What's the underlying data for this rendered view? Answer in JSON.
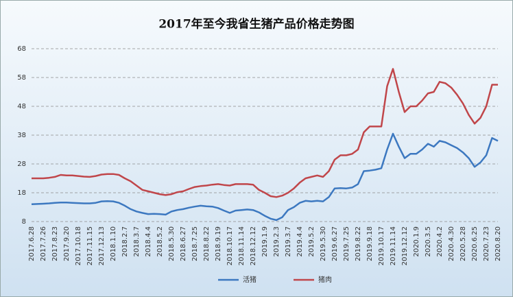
{
  "chart_data": {
    "type": "line",
    "title": "2017年至今我省生猪产品价格走势图",
    "categories": [
      "2017.6.28",
      null,
      "2017.7.26",
      null,
      "2017.8.23",
      null,
      "2017.9.20",
      null,
      "2017.10.18",
      null,
      "2017.11.15",
      null,
      "2017.12.13",
      null,
      "2018.1.10",
      null,
      "2018.2.7",
      null,
      "2018.3.7",
      null,
      "2018.4.4",
      null,
      "2018.5.2",
      null,
      "2018.5.30",
      null,
      "2018.6.27",
      null,
      "2018.7.25",
      null,
      "2018.8.22",
      null,
      "2018.9.19",
      null,
      "2018.10.17",
      null,
      "2018.11.14",
      null,
      "2018.12.12",
      null,
      "2019.1.9",
      null,
      "2019.2.3",
      null,
      "2019.3.7",
      null,
      "2019.4.4",
      null,
      "2019.5.2",
      null,
      "2019.5.30",
      null,
      "2019.6.27",
      null,
      "2019.7.25",
      null,
      "2019.8.22",
      null,
      "2019.9.18",
      null,
      "2019.10.17",
      null,
      "2019.11.14",
      null,
      "2019.12.12",
      null,
      "2020.1.9",
      null,
      "2020.3.5",
      null,
      "2020.4.2",
      null,
      "2020.4.30",
      null,
      "2020.5.28",
      null,
      "2020.6.25",
      null,
      "2020.7.23",
      null,
      "2020.8.20"
    ],
    "series": [
      {
        "name": "活猪",
        "color": "#3c78c0",
        "values": [
          14.0,
          14.1,
          14.2,
          14.3,
          14.5,
          14.6,
          14.6,
          14.5,
          14.4,
          14.3,
          14.3,
          14.5,
          15.0,
          15.1,
          15.0,
          14.5,
          13.5,
          12.3,
          11.5,
          11.0,
          10.6,
          10.7,
          10.6,
          10.4,
          11.5,
          12.0,
          12.3,
          12.8,
          13.2,
          13.5,
          13.3,
          13.2,
          12.7,
          11.8,
          11.0,
          11.8,
          12.0,
          12.2,
          12.0,
          11.2,
          10.0,
          9.0,
          8.5,
          9.5,
          12.0,
          13.0,
          14.5,
          15.2,
          15.0,
          15.2,
          15.0,
          16.5,
          19.5,
          19.6,
          19.5,
          19.8,
          21.0,
          25.5,
          25.7,
          26.0,
          26.5,
          33.0,
          38.5,
          34.0,
          30.0,
          31.5,
          31.5,
          33.0,
          35.0,
          34.0,
          36.0,
          35.5,
          34.5,
          33.5,
          32.0,
          30.0,
          27.0,
          28.5,
          31.0,
          37.0,
          36.0
        ]
      },
      {
        "name": "猪肉",
        "color": "#c0464a",
        "values": [
          23.0,
          23.0,
          23.0,
          23.2,
          23.5,
          24.2,
          24.0,
          24.0,
          23.8,
          23.6,
          23.5,
          23.8,
          24.3,
          24.5,
          24.5,
          24.2,
          23.0,
          22.0,
          20.5,
          19.0,
          18.5,
          18.0,
          17.5,
          17.2,
          17.5,
          18.2,
          18.5,
          19.3,
          20.0,
          20.3,
          20.5,
          20.8,
          21.0,
          20.7,
          20.5,
          21.0,
          21.0,
          21.0,
          20.8,
          19.0,
          18.0,
          16.8,
          16.5,
          17.0,
          18.0,
          19.5,
          21.5,
          23.0,
          23.5,
          24.0,
          23.5,
          25.5,
          29.5,
          31.0,
          31.0,
          31.5,
          33.0,
          39.0,
          41.0,
          41.0,
          41.0,
          55.0,
          61.0,
          53.0,
          46.0,
          48.0,
          48.0,
          50.0,
          52.5,
          53.0,
          56.5,
          56.0,
          54.5,
          52.0,
          49.0,
          45.0,
          42.0,
          44.0,
          48.0,
          55.5,
          55.5
        ]
      }
    ],
    "ylim": [
      8,
      68
    ],
    "yticks": [
      8,
      18,
      28,
      38,
      48,
      58,
      68
    ],
    "grid": true,
    "legend": "bottom"
  }
}
